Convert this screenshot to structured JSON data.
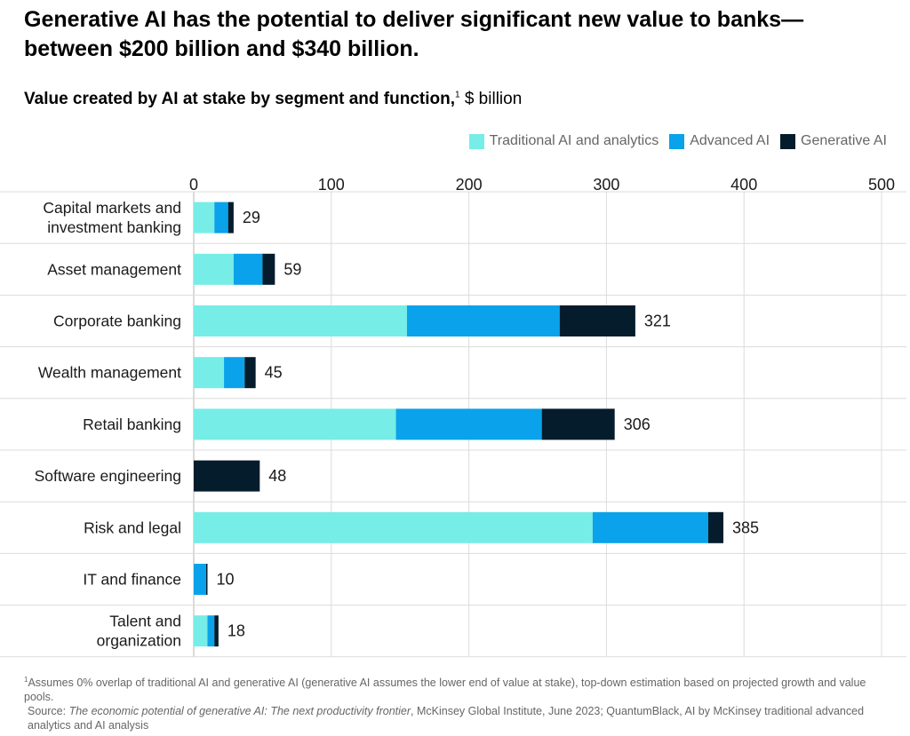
{
  "headline": {
    "line1": "Generative AI has the potential to deliver significant new value to banks—",
    "line2": "between $200 billion and $340 billion."
  },
  "subtitle": {
    "bold": "Value created by AI at stake by segment and function,",
    "sup": "1",
    "rest": " $ billion"
  },
  "legend": [
    {
      "label": "Traditional AI and analytics",
      "color": "#76ede6"
    },
    {
      "label": "Advanced AI",
      "color": "#0aa2ea"
    },
    {
      "label": "Generative  AI",
      "color": "#051c2c"
    }
  ],
  "chart_data": {
    "type": "bar",
    "orientation": "horizontal",
    "stacked": true,
    "title": "Value created by AI at stake by segment and function",
    "xlabel": "$ billion",
    "xlim": [
      0,
      500
    ],
    "xticks": [
      0,
      100,
      200,
      300,
      400,
      500
    ],
    "grid": true,
    "legend_position": "top-right",
    "categories": [
      "Capital markets and investment banking",
      "Asset management",
      "Corporate banking",
      "Wealth management",
      "Retail banking",
      "Software engineering",
      "Risk and legal",
      "IT and finance",
      "Talent and organization"
    ],
    "category_lines": [
      [
        "Capital markets and",
        "investment banking"
      ],
      [
        "Asset management"
      ],
      [
        "Corporate banking"
      ],
      [
        "Wealth management"
      ],
      [
        "Retail banking"
      ],
      [
        "Software engineering"
      ],
      [
        "Risk and legal"
      ],
      [
        "IT and finance"
      ],
      [
        "Talent and",
        "organization"
      ]
    ],
    "series": [
      {
        "name": "Traditional AI and analytics",
        "color": "#76ede6",
        "values": [
          15,
          29,
          155,
          22,
          147,
          0,
          290,
          0,
          10
        ]
      },
      {
        "name": "Advanced AI",
        "color": "#0aa2ea",
        "values": [
          10,
          21,
          111,
          15,
          106,
          0,
          84,
          9,
          5
        ]
      },
      {
        "name": "Generative  AI",
        "color": "#051c2c",
        "values": [
          4,
          9,
          55,
          8,
          53,
          48,
          11,
          1,
          3
        ]
      }
    ],
    "totals": [
      29,
      59,
      321,
      45,
      306,
      48,
      385,
      10,
      18
    ]
  },
  "footnotes": {
    "sup": "1",
    "note": "Assumes 0% overlap of traditional AI and generative AI (generative AI assumes the lower end of value at stake), top-down estimation based on projected growth and value pools.",
    "source_prefix": "Source: ",
    "source_title": "The economic potential of generative AI: The next productivity frontier",
    "source_rest": ", McKinsey Global Institute, June 2023; QuantumBlack, AI by McKinsey traditional advanced analytics and AI analysis"
  }
}
